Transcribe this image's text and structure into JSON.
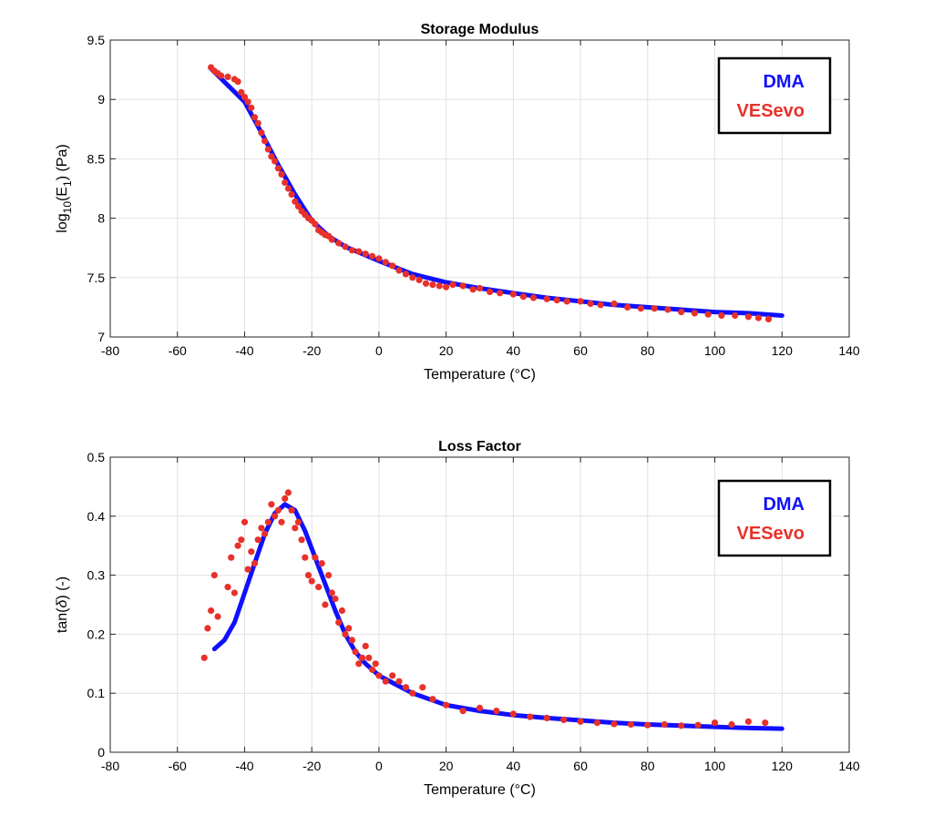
{
  "colors": {
    "dma": "#1010ff",
    "vesevo": "#e8312a",
    "grid": "#e2e2e2",
    "axis": "#262626"
  },
  "chart_data": [
    {
      "type": "line",
      "title": "Storage Modulus",
      "xlabel": "Temperature (°C)",
      "ylabel_parts": {
        "pre": "log",
        "sub1": "10",
        "mid": "(E",
        "sub2": "1",
        "post": ") (Pa)"
      },
      "xlim": [
        -80,
        140
      ],
      "ylim": [
        7,
        9.5
      ],
      "xticks": [
        -80,
        -60,
        -40,
        -20,
        0,
        20,
        40,
        60,
        80,
        100,
        120,
        140
      ],
      "yticks": [
        7,
        7.5,
        8,
        8.5,
        9,
        9.5
      ],
      "xtick_labels": [
        "-80",
        "-60",
        "-40",
        "-20",
        "0",
        "20",
        "40",
        "60",
        "80",
        "100",
        "120",
        "140"
      ],
      "ytick_labels": [
        "7",
        "7.5",
        "8",
        "8.5",
        "9",
        "9.5"
      ],
      "grid": true,
      "legend": {
        "position": "top-right",
        "entries": [
          "DMA",
          "VESevo"
        ]
      },
      "series": [
        {
          "name": "DMA",
          "style": "line",
          "x": [
            -50,
            -45,
            -40,
            -35,
            -30,
            -25,
            -20,
            -15,
            -10,
            -5,
            0,
            10,
            20,
            30,
            40,
            50,
            60,
            70,
            80,
            90,
            100,
            110,
            120
          ],
          "y": [
            9.26,
            9.12,
            8.98,
            8.72,
            8.45,
            8.2,
            7.98,
            7.85,
            7.76,
            7.7,
            7.64,
            7.53,
            7.46,
            7.41,
            7.37,
            7.33,
            7.3,
            7.27,
            7.25,
            7.23,
            7.21,
            7.2,
            7.18
          ]
        },
        {
          "name": "VESevo",
          "style": "scatter",
          "x": [
            -50,
            -49,
            -48,
            -47,
            -45,
            -43,
            -42,
            -41,
            -40,
            -39,
            -38,
            -37,
            -36,
            -35,
            -34,
            -33,
            -32,
            -31,
            -30,
            -29,
            -28,
            -27,
            -26,
            -25,
            -24,
            -23,
            -22,
            -21,
            -20,
            -19,
            -18,
            -17,
            -16,
            -15,
            -14,
            -12,
            -10,
            -8,
            -6,
            -4,
            -2,
            0,
            2,
            4,
            6,
            8,
            10,
            12,
            14,
            16,
            18,
            20,
            22,
            25,
            28,
            30,
            33,
            36,
            40,
            43,
            46,
            50,
            53,
            56,
            60,
            63,
            66,
            70,
            74,
            78,
            82,
            86,
            90,
            94,
            98,
            102,
            106,
            110,
            113,
            116
          ],
          "y": [
            9.27,
            9.24,
            9.22,
            9.2,
            9.19,
            9.17,
            9.15,
            9.06,
            9.02,
            8.98,
            8.93,
            8.85,
            8.8,
            8.72,
            8.65,
            8.58,
            8.52,
            8.48,
            8.42,
            8.37,
            8.3,
            8.25,
            8.2,
            8.14,
            8.1,
            8.06,
            8.03,
            8.0,
            7.98,
            7.95,
            7.9,
            7.88,
            7.86,
            7.85,
            7.82,
            7.79,
            7.76,
            7.73,
            7.72,
            7.7,
            7.68,
            7.66,
            7.63,
            7.6,
            7.56,
            7.53,
            7.5,
            7.48,
            7.45,
            7.44,
            7.43,
            7.42,
            7.44,
            7.43,
            7.4,
            7.41,
            7.38,
            7.37,
            7.36,
            7.34,
            7.33,
            7.32,
            7.31,
            7.3,
            7.3,
            7.28,
            7.27,
            7.28,
            7.25,
            7.24,
            7.24,
            7.23,
            7.21,
            7.2,
            7.19,
            7.18,
            7.18,
            7.17,
            7.16,
            7.15
          ]
        }
      ]
    },
    {
      "type": "line",
      "title": "Loss Factor",
      "xlabel": "Temperature (°C)",
      "ylabel_parts": {
        "pre": "tan(",
        "sym": "δ",
        "post": ") (-)"
      },
      "xlim": [
        -80,
        140
      ],
      "ylim": [
        0,
        0.5
      ],
      "xticks": [
        -80,
        -60,
        -40,
        -20,
        0,
        20,
        40,
        60,
        80,
        100,
        120,
        140
      ],
      "yticks": [
        0,
        0.1,
        0.2,
        0.3,
        0.4,
        0.5
      ],
      "xtick_labels": [
        "-80",
        "-60",
        "-40",
        "-20",
        "0",
        "20",
        "40",
        "60",
        "80",
        "100",
        "120",
        "140"
      ],
      "ytick_labels": [
        "0",
        "0.1",
        "0.2",
        "0.3",
        "0.4",
        "0.5"
      ],
      "grid": true,
      "legend": {
        "position": "top-right",
        "entries": [
          "DMA",
          "VESevo"
        ]
      },
      "series": [
        {
          "name": "DMA",
          "style": "line",
          "x": [
            -49,
            -46,
            -43,
            -40,
            -37,
            -34,
            -31,
            -28,
            -25,
            -22,
            -19,
            -16,
            -13,
            -10,
            -7,
            -4,
            0,
            5,
            10,
            15,
            20,
            30,
            40,
            50,
            60,
            70,
            80,
            90,
            100,
            110,
            120
          ],
          "y": [
            0.175,
            0.19,
            0.22,
            0.27,
            0.32,
            0.37,
            0.405,
            0.42,
            0.41,
            0.375,
            0.33,
            0.285,
            0.24,
            0.2,
            0.17,
            0.15,
            0.13,
            0.115,
            0.1,
            0.09,
            0.08,
            0.07,
            0.063,
            0.058,
            0.054,
            0.05,
            0.047,
            0.045,
            0.043,
            0.041,
            0.04
          ]
        },
        {
          "name": "VESevo",
          "style": "scatter",
          "x": [
            -52,
            -51,
            -50,
            -49,
            -48,
            -45,
            -44,
            -43,
            -42,
            -41,
            -40,
            -39,
            -38,
            -37,
            -36,
            -35,
            -34,
            -33,
            -32,
            -31,
            -30,
            -29,
            -28,
            -27,
            -26,
            -25,
            -24,
            -23,
            -22,
            -21,
            -20,
            -19,
            -18,
            -17,
            -16,
            -15,
            -14,
            -13,
            -12,
            -11,
            -10,
            -9,
            -8,
            -7,
            -6,
            -5,
            -4,
            -3,
            -2,
            -1,
            0,
            2,
            4,
            6,
            8,
            10,
            13,
            16,
            20,
            25,
            30,
            35,
            40,
            45,
            50,
            55,
            60,
            65,
            70,
            75,
            80,
            85,
            90,
            95,
            100,
            105,
            110,
            115
          ],
          "y": [
            0.16,
            0.21,
            0.24,
            0.3,
            0.23,
            0.28,
            0.33,
            0.27,
            0.35,
            0.36,
            0.39,
            0.31,
            0.34,
            0.32,
            0.36,
            0.38,
            0.37,
            0.39,
            0.42,
            0.4,
            0.41,
            0.39,
            0.43,
            0.44,
            0.41,
            0.38,
            0.39,
            0.36,
            0.33,
            0.3,
            0.29,
            0.33,
            0.28,
            0.32,
            0.25,
            0.3,
            0.27,
            0.26,
            0.22,
            0.24,
            0.2,
            0.21,
            0.19,
            0.17,
            0.15,
            0.16,
            0.18,
            0.16,
            0.14,
            0.15,
            0.13,
            0.12,
            0.13,
            0.12,
            0.11,
            0.1,
            0.11,
            0.09,
            0.08,
            0.07,
            0.075,
            0.07,
            0.065,
            0.06,
            0.058,
            0.055,
            0.052,
            0.05,
            0.048,
            0.047,
            0.046,
            0.047,
            0.045,
            0.046,
            0.05,
            0.047,
            0.052,
            0.05
          ]
        }
      ]
    }
  ]
}
